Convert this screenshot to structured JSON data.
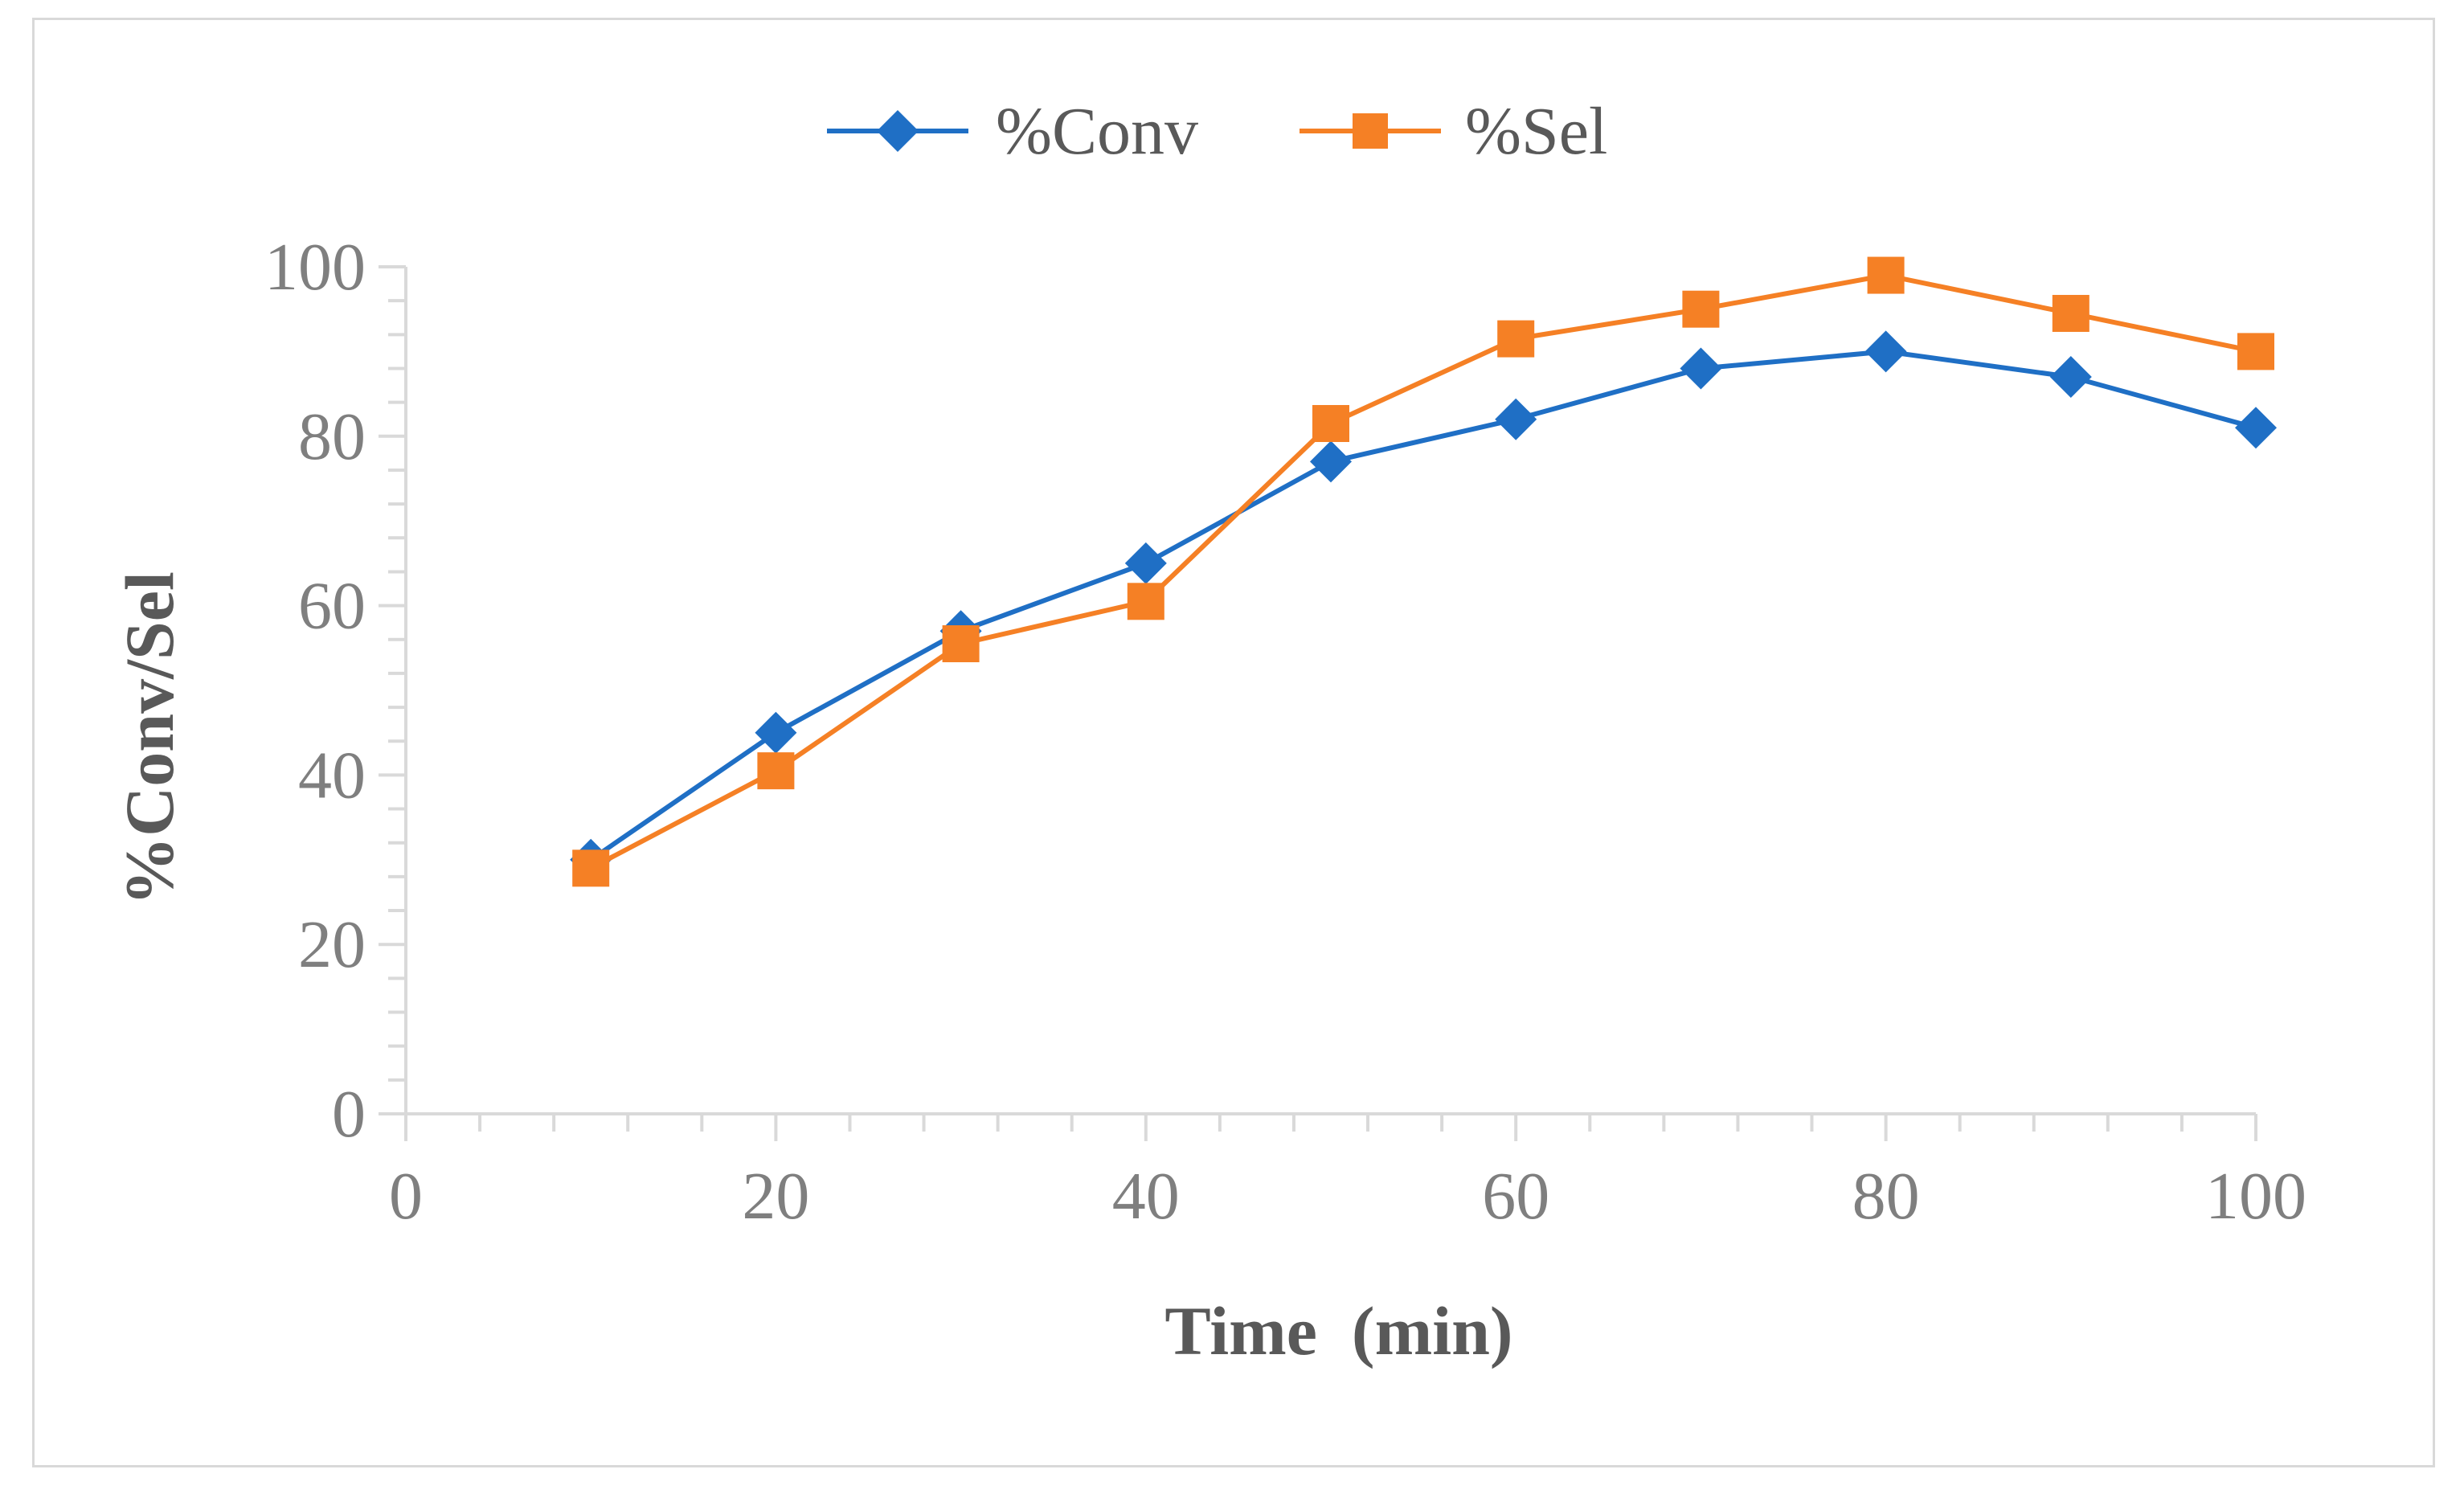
{
  "chart_data": {
    "type": "line",
    "title": "",
    "xlabel": "Time  (min)",
    "ylabel": "%Conv/Sel",
    "xlim": [
      0,
      100
    ],
    "ylim": [
      0,
      100
    ],
    "x_ticks": [
      0,
      20,
      40,
      60,
      80,
      100
    ],
    "y_ticks": [
      0,
      20,
      40,
      60,
      80,
      100
    ],
    "x_minor_step": 4,
    "y_minor_step": 4,
    "grid": false,
    "legend_position": "top-center",
    "x": [
      10,
      20,
      30,
      40,
      50,
      60,
      70,
      80,
      90,
      100
    ],
    "series": [
      {
        "name": "%Conv",
        "marker": "diamond",
        "color": "#1f6fc5",
        "values": [
          30,
          45,
          57,
          65,
          77,
          82,
          88,
          90,
          87,
          81
        ]
      },
      {
        "name": "%Sel",
        "marker": "square",
        "color": "#f58025",
        "values": [
          29,
          40.5,
          55.5,
          60.5,
          81.5,
          91.5,
          95,
          99,
          94.5,
          90
        ]
      }
    ],
    "axis_color": "#d9d9d9"
  }
}
